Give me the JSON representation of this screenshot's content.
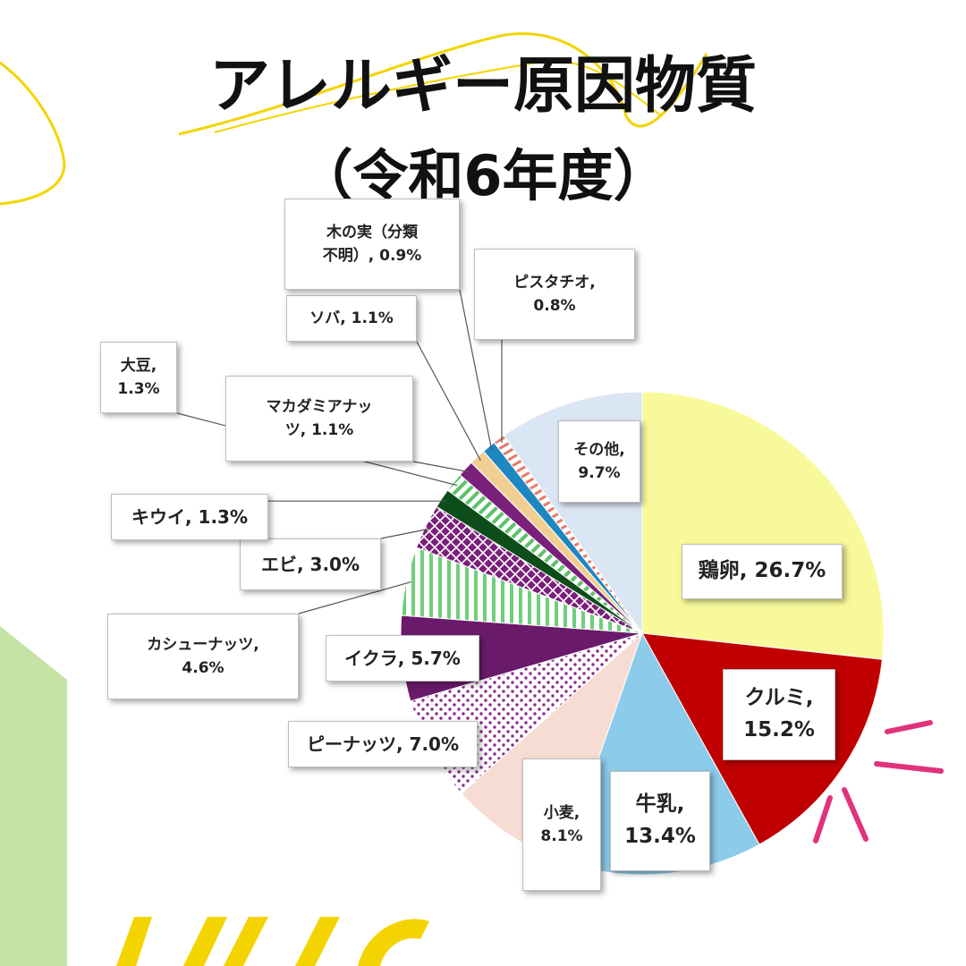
{
  "title": {
    "line1": "アレルギー原因物質",
    "line2": "（令和6年度）"
  },
  "colors": {
    "yellow_accent": "#f3d400",
    "green_accent": "#c5e3a4",
    "pink_accent": "#e0337b"
  },
  "chart_data": {
    "type": "pie",
    "start": "12 o'clock, clockwise",
    "slices": [
      {
        "label": "鶏卵, 26.7%",
        "value": 26.7,
        "color": "#f8f99a",
        "pattern": "solid"
      },
      {
        "label": "クルミ,\n15.2%",
        "value": 15.2,
        "color": "#c00000",
        "pattern": "solid"
      },
      {
        "label": "牛乳,\n13.4%",
        "value": 13.4,
        "color": "#8ccbe9",
        "pattern": "solid"
      },
      {
        "label": "小麦,\n8.1%",
        "value": 8.1,
        "color": "#f6dcd2",
        "pattern": "solid"
      },
      {
        "label": "ピーナッツ, 7.0%",
        "value": 7.0,
        "color": "#8a2a8a",
        "pattern": "dots"
      },
      {
        "label": "イクラ, 5.7%",
        "value": 5.7,
        "color": "#6a1a6a",
        "pattern": "solid"
      },
      {
        "label": "カシューナッツ,\n4.6%",
        "value": 4.6,
        "color": "#6fcf7a",
        "pattern": "stripes-v"
      },
      {
        "label": "エビ, 3.0%",
        "value": 3.0,
        "color": "#7a1f7a",
        "pattern": "checker"
      },
      {
        "label": "キウイ, 1.3%",
        "value": 1.3,
        "color": "#0d4d1a",
        "pattern": "solid"
      },
      {
        "label": "大豆,\n1.3%",
        "value": 1.3,
        "color": "#5cc26a",
        "pattern": "stripes-d"
      },
      {
        "label": "マカダミアナッ\nツ, 1.1%",
        "value": 1.1,
        "color": "#7a1f7a",
        "pattern": "solid"
      },
      {
        "label": "ソバ, 1.1%",
        "value": 1.1,
        "color": "#f1cf93",
        "pattern": "solid"
      },
      {
        "label": "木の実（分類\n不明）, 0.9%",
        "value": 0.9,
        "color": "#1f87c0",
        "pattern": "solid"
      },
      {
        "label": "ピスタチオ,\n0.8%",
        "value": 0.8,
        "color": "#e77a6a",
        "pattern": "stripes-h"
      },
      {
        "label": "その他,\n9.7%",
        "value": 9.7,
        "color": "#dbe6f4",
        "pattern": "solid"
      }
    ]
  }
}
